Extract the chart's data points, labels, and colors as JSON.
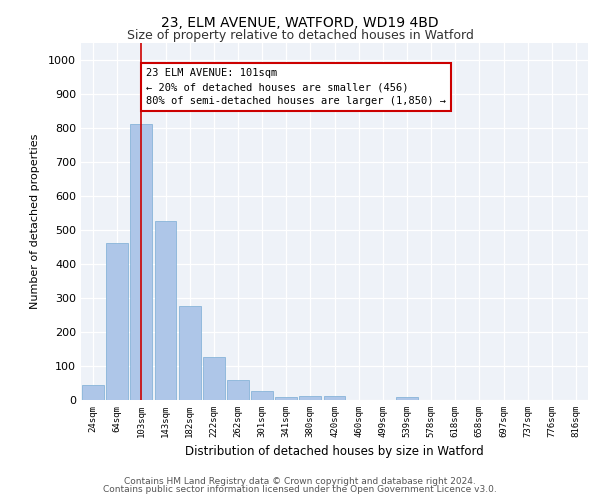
{
  "title1": "23, ELM AVENUE, WATFORD, WD19 4BD",
  "title2": "Size of property relative to detached houses in Watford",
  "xlabel": "Distribution of detached houses by size in Watford",
  "ylabel": "Number of detached properties",
  "categories": [
    "24sqm",
    "64sqm",
    "103sqm",
    "143sqm",
    "182sqm",
    "222sqm",
    "262sqm",
    "301sqm",
    "341sqm",
    "380sqm",
    "420sqm",
    "460sqm",
    "499sqm",
    "539sqm",
    "578sqm",
    "618sqm",
    "658sqm",
    "697sqm",
    "737sqm",
    "776sqm",
    "816sqm"
  ],
  "values": [
    45,
    460,
    810,
    525,
    275,
    125,
    60,
    25,
    10,
    12,
    12,
    0,
    0,
    8,
    0,
    0,
    0,
    0,
    0,
    0,
    0
  ],
  "bar_color": "#aec6e8",
  "bar_edge_color": "#7aadd4",
  "vline_x": 2,
  "vline_color": "#cc0000",
  "annotation_text": "23 ELM AVENUE: 101sqm\n← 20% of detached houses are smaller (456)\n80% of semi-detached houses are larger (1,850) →",
  "annotation_box_color": "#ffffff",
  "annotation_box_edge": "#cc0000",
  "ylim": [
    0,
    1050
  ],
  "yticks": [
    0,
    100,
    200,
    300,
    400,
    500,
    600,
    700,
    800,
    900,
    1000
  ],
  "footer1": "Contains HM Land Registry data © Crown copyright and database right 2024.",
  "footer2": "Contains public sector information licensed under the Open Government Licence v3.0.",
  "bg_color": "#eef2f8"
}
